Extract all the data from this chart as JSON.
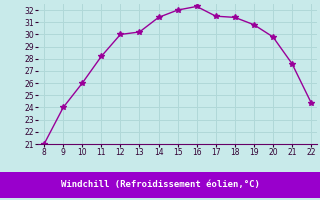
{
  "x": [
    8,
    9,
    10,
    11,
    12,
    13,
    14,
    15,
    16,
    17,
    18,
    19,
    20,
    21,
    22
  ],
  "y": [
    21,
    24,
    26,
    28.2,
    30,
    30.2,
    31.4,
    32,
    32.3,
    31.5,
    31.4,
    30.8,
    29.8,
    27.6,
    24.4
  ],
  "xlabel": "Windchill (Refroidissement éolien,°C)",
  "ylim": [
    21,
    32.5
  ],
  "xlim": [
    7.7,
    22.3
  ],
  "yticks": [
    21,
    22,
    23,
    24,
    25,
    26,
    27,
    28,
    29,
    30,
    31,
    32
  ],
  "xticks": [
    8,
    9,
    10,
    11,
    12,
    13,
    14,
    15,
    16,
    17,
    18,
    19,
    20,
    21,
    22
  ],
  "line_color": "#990099",
  "marker": "o",
  "bg_color": "#c8eaea",
  "grid_color": "#b0d8d8",
  "xlabel_color": "#9900cc",
  "banner_color": "#9900cc"
}
